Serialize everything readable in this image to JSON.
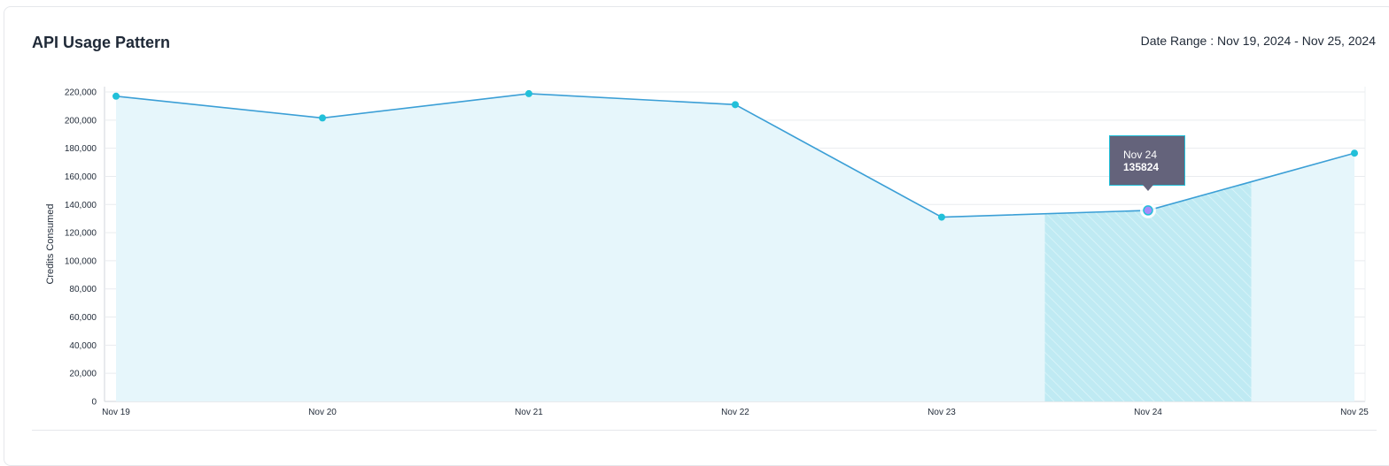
{
  "header": {
    "title": "API Usage Pattern",
    "date_range": "Date Range : Nov 19, 2024 - Nov 25, 2024"
  },
  "tooltip": {
    "label": "Nov 24",
    "value": "135824"
  },
  "colors": {
    "line": "#3b9fd6",
    "point": "#22c0d9",
    "area": "#e6f6fb",
    "highlight": "#bfeaf3",
    "hover_point": "#a78bfa",
    "tooltip_bg": "#64637b"
  },
  "chart_data": {
    "type": "area",
    "categories": [
      "Nov 19",
      "Nov 20",
      "Nov 21",
      "Nov 22",
      "Nov 23",
      "Nov 24",
      "Nov 25"
    ],
    "values": [
      217000,
      201500,
      218800,
      211000,
      131000,
      135824,
      176500
    ],
    "ylabel": "Credits Consumed",
    "xlabel": "",
    "ylim": [
      0,
      220000
    ],
    "yticks": [
      0,
      20000,
      40000,
      60000,
      80000,
      100000,
      120000,
      140000,
      160000,
      180000,
      200000,
      220000
    ],
    "ytick_labels": [
      "0",
      "20,000",
      "40,000",
      "60,000",
      "80,000",
      "100,000",
      "120,000",
      "140,000",
      "160,000",
      "180,000",
      "200,000",
      "220,000"
    ],
    "grid": true,
    "highlighted_category": "Nov 24"
  }
}
